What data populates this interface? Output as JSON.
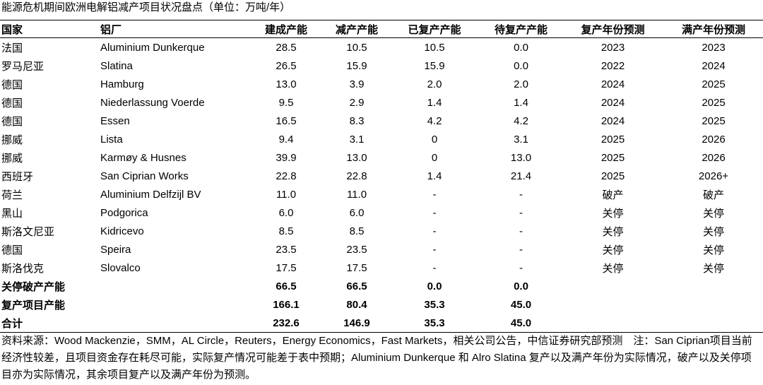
{
  "title": "能源危机期间欧洲电解铝减产项目状况盘点（单位：万吨/年）",
  "table": {
    "header": [
      "国家",
      "铝厂",
      "建成产能",
      "减产产能",
      "已复产产能",
      "待复产产能",
      "复产年份预测",
      "满产年份预测"
    ],
    "rows": [
      [
        "法国",
        "Aluminium Dunkerque",
        "28.5",
        "10.5",
        "10.5",
        "0.0",
        "2023",
        "2023"
      ],
      [
        "罗马尼亚",
        "Slatina",
        "26.5",
        "15.9",
        "15.9",
        "0.0",
        "2022",
        "2024"
      ],
      [
        "德国",
        "Hamburg",
        "13.0",
        "3.9",
        "2.0",
        "2.0",
        "2024",
        "2025"
      ],
      [
        "德国",
        "Niederlassung Voerde",
        "9.5",
        "2.9",
        "1.4",
        "1.4",
        "2024",
        "2025"
      ],
      [
        "德国",
        "Essen",
        "16.5",
        "8.3",
        "4.2",
        "4.2",
        "2024",
        "2025"
      ],
      [
        "挪威",
        "Lista",
        "9.4",
        "3.1",
        "0",
        "3.1",
        "2025",
        "2026"
      ],
      [
        "挪威",
        "Karmøy & Husnes",
        "39.9",
        "13.0",
        "0",
        "13.0",
        "2025",
        "2026"
      ],
      [
        "西班牙",
        "San Ciprian Works",
        "22.8",
        "22.8",
        "1.4",
        "21.4",
        "2025",
        "2026+"
      ],
      [
        "荷兰",
        "Aluminium Delfzijl BV",
        "11.0",
        "11.0",
        "-",
        "-",
        "破产",
        "破产"
      ],
      [
        "黑山",
        "Podgorica",
        "6.0",
        "6.0",
        "-",
        "-",
        "关停",
        "关停"
      ],
      [
        "斯洛文尼亚",
        "Kidricevo",
        "8.5",
        "8.5",
        "-",
        "-",
        "关停",
        "关停"
      ],
      [
        "德国",
        "Speira",
        "23.5",
        "23.5",
        "-",
        "-",
        "关停",
        "关停"
      ],
      [
        "斯洛伐克",
        "Slovalco",
        "17.5",
        "17.5",
        "-",
        "-",
        "关停",
        "关停"
      ]
    ],
    "summary": [
      {
        "label": "关停破产产能",
        "values": [
          "66.5",
          "66.5",
          "0.0",
          "0.0"
        ]
      },
      {
        "label": "复产项目产能",
        "values": [
          "166.1",
          "80.4",
          "35.3",
          "45.0"
        ]
      },
      {
        "label": "合计",
        "values": [
          "232.6",
          "146.9",
          "35.3",
          "45.0"
        ]
      }
    ]
  },
  "note": "资料来源：Wood Mackenzie，SMM，AL Circle，Reuters，Energy Economics，Fast Markets，相关公司公告，中信证券研究部预测　注：San Ciprian项目当前经济性较差，且项目资金存在耗尽可能，实际复产情况可能差于表中预期；Aluminium Dunkerque 和 Alro Slatina 复产以及满产年份为实际情况，破产以及关停项目亦为实际情况，其余项目复产以及满产年份为预测。"
}
